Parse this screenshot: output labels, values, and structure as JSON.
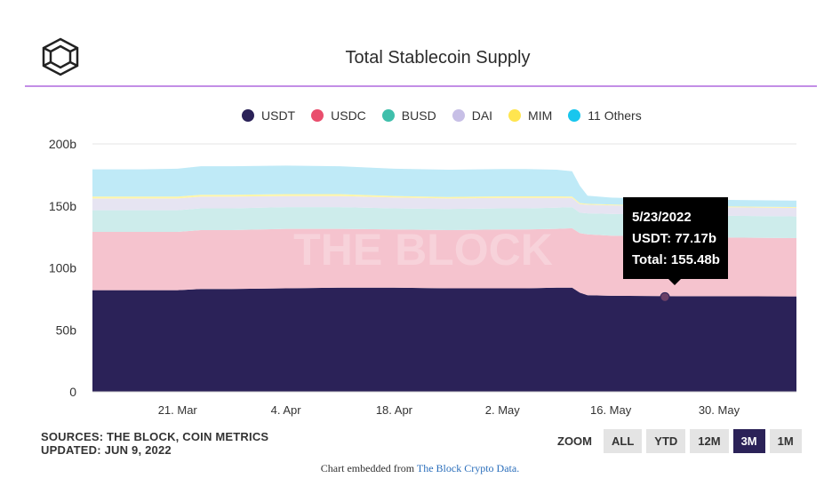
{
  "header": {
    "title": "Total Stablecoin Supply"
  },
  "legend": [
    {
      "label": "USDT",
      "color": "#2b2258"
    },
    {
      "label": "USDC",
      "color": "#e94e6d"
    },
    {
      "label": "BUSD",
      "color": "#3fbfab"
    },
    {
      "label": "DAI",
      "color": "#c7bfe6"
    },
    {
      "label": "MIM",
      "color": "#ffe54f"
    },
    {
      "label": "11 Others",
      "color": "#19c6ee"
    }
  ],
  "watermark": "THE BLOCK",
  "tooltip": {
    "date": "5/23/2022",
    "usdt": "USDT: 77.17b",
    "total": "Total: 155.48b"
  },
  "footer": {
    "sources": "SOURCES: THE BLOCK, COIN METRICS",
    "updated": "UPDATED: JUN 9, 2022",
    "zoom_label": "ZOOM",
    "zoom_buttons": [
      "ALL",
      "YTD",
      "12M",
      "3M",
      "1M"
    ],
    "zoom_active": "3M",
    "embed_prefix": "Chart embedded from ",
    "embed_link": "The Block Crypto Data."
  },
  "chart_data": {
    "type": "area",
    "stacked": true,
    "title": "Total Stablecoin Supply",
    "yticks": [
      "0",
      "50b",
      "100b",
      "150b",
      "200b"
    ],
    "ylim": [
      0,
      200
    ],
    "xticks": [
      "21. Mar",
      "4. Apr",
      "18. Apr",
      "2. May",
      "16. May",
      "30. May"
    ],
    "x": [
      "2022-03-10",
      "2022-03-16",
      "2022-03-21",
      "2022-03-24",
      "2022-03-28",
      "2022-04-04",
      "2022-04-11",
      "2022-04-18",
      "2022-04-25",
      "2022-05-02",
      "2022-05-05",
      "2022-05-09",
      "2022-05-11",
      "2022-05-12",
      "2022-05-13",
      "2022-05-16",
      "2022-05-23",
      "2022-05-30",
      "2022-06-09"
    ],
    "series": [
      {
        "name": "USDT",
        "values": [
          82,
          82,
          82,
          83,
          83,
          83.5,
          84,
          84,
          83.5,
          83.5,
          83.5,
          84,
          84,
          80,
          78,
          77.5,
          77.17,
          77.1,
          77
        ]
      },
      {
        "name": "USDC",
        "values": [
          47,
          47,
          47,
          47.5,
          47.5,
          48,
          47.5,
          47,
          47,
          47.5,
          47.5,
          47.5,
          48,
          48,
          49,
          48.5,
          48,
          47.5,
          47
        ]
      },
      {
        "name": "BUSD",
        "values": [
          17.5,
          17.5,
          17.5,
          17.5,
          17.5,
          17.5,
          17.5,
          17,
          17,
          17,
          17,
          17,
          17,
          16.5,
          17,
          17.5,
          17.5,
          17.5,
          17.5
        ]
      },
      {
        "name": "DAI",
        "values": [
          9.5,
          9.5,
          9.5,
          9.5,
          9.5,
          9,
          9,
          8.8,
          8.5,
          8.5,
          8.5,
          8,
          7.5,
          7,
          7,
          7,
          6.9,
          6.9,
          6.9
        ]
      },
      {
        "name": "MIM",
        "values": [
          1.5,
          1.5,
          1.5,
          1.5,
          1.5,
          1.5,
          1.5,
          1.2,
          1.2,
          1.2,
          1.2,
          1.2,
          1,
          0.8,
          0.7,
          0.7,
          0.6,
          0.6,
          0.6
        ]
      },
      {
        "name": "11 Others",
        "values": [
          22,
          22,
          22.5,
          23,
          23,
          23,
          22.5,
          22,
          22,
          22,
          22,
          21.5,
          20.5,
          14,
          6.5,
          5.5,
          5.31,
          5.3,
          5.3
        ]
      }
    ],
    "colors": [
      "#2b2258",
      "#f5c3ce",
      "#cdeceb",
      "#e6e4f2",
      "#fff6a8",
      "#bfeaf7"
    ],
    "highlight": {
      "x": "2022-05-23",
      "y": 77.17
    }
  }
}
